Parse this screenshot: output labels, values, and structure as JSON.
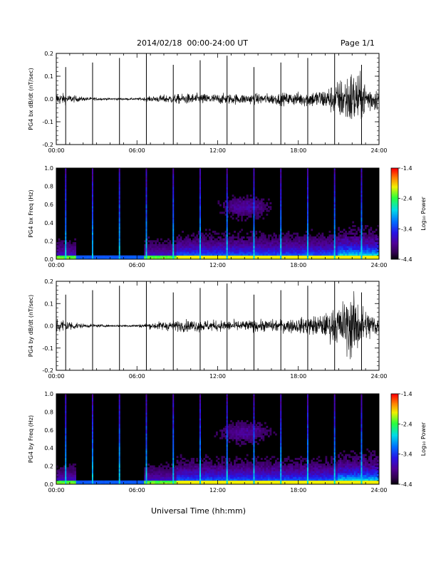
{
  "header": {
    "title": "2014/02/18  00:00-24:00 UT",
    "page": "Page 1/1"
  },
  "xaxis_label": "Universal Time (hh:mm)",
  "x_ticks": [
    "00:00",
    "06:00",
    "12:00",
    "18:00",
    "24:00"
  ],
  "colors": {
    "background": "#ffffff",
    "spectrogram_background": "#000000",
    "trace": "#000000"
  },
  "chart_data": [
    {
      "type": "line",
      "ylabel": "PG4 bx dB/dt (nT/sec)",
      "xlim": [
        0,
        24
      ],
      "ylim": [
        -0.2,
        0.2
      ],
      "y_ticks": [
        "0.2",
        "0.1",
        "0.0",
        "-0.1",
        "-0.2"
      ],
      "x_ticks": [
        "00:00",
        "06:00",
        "12:00",
        "18:00",
        "24:00"
      ],
      "spike_times_hours": [
        0.7,
        2.7,
        4.7,
        6.7,
        8.7,
        10.7,
        12.7,
        14.7,
        16.7,
        18.7,
        20.7,
        22.7
      ],
      "noise_envelope": {
        "t_hours": [
          0,
          1,
          2,
          4,
          6,
          8,
          10,
          12,
          14,
          16,
          18,
          20,
          21,
          22,
          23,
          24
        ],
        "amplitude": [
          0.02,
          0.012,
          0.006,
          0.003,
          0.003,
          0.012,
          0.016,
          0.015,
          0.015,
          0.016,
          0.02,
          0.03,
          0.055,
          0.09,
          0.05,
          0.03
        ]
      }
    },
    {
      "type": "heatmap",
      "ylabel": "PG4 bx Freq (Hz)",
      "xlim": [
        0,
        24
      ],
      "ylim": [
        0,
        1.0
      ],
      "y_ticks": [
        "1.0",
        "0.8",
        "0.6",
        "0.4",
        "0.2",
        "0.0"
      ],
      "x_ticks": [
        "00:00",
        "06:00",
        "12:00",
        "18:00",
        "24:00"
      ],
      "colorbar": {
        "label": "Log₁₀ Power",
        "range": [
          -4.4,
          -1.4
        ],
        "ticks": [
          "-1.4",
          "-2.4",
          "-3.4",
          "-4.4"
        ]
      },
      "vertical_lines_hours": [
        0.7,
        2.7,
        4.7,
        6.7,
        8.7,
        10.7,
        12.7,
        14.7,
        16.7,
        18.7,
        20.7,
        22.7
      ]
    },
    {
      "type": "line",
      "ylabel": "PG4 by dB/dt (nT/sec)",
      "xlim": [
        0,
        24
      ],
      "ylim": [
        -0.2,
        0.2
      ],
      "y_ticks": [
        "0.2",
        "0.1",
        "0.0",
        "-0.1",
        "-0.2"
      ],
      "x_ticks": [
        "00:00",
        "06:00",
        "12:00",
        "18:00",
        "24:00"
      ],
      "spike_times_hours": [
        0.7,
        2.7,
        4.7,
        6.7,
        8.7,
        10.7,
        12.7,
        14.7,
        16.7,
        18.7,
        20.7,
        22.7
      ],
      "noise_envelope": {
        "t_hours": [
          0,
          1,
          2,
          4,
          6,
          8,
          10,
          12,
          14,
          16,
          18,
          20,
          21,
          22,
          23,
          24
        ],
        "amplitude": [
          0.025,
          0.015,
          0.006,
          0.003,
          0.004,
          0.014,
          0.018,
          0.016,
          0.016,
          0.018,
          0.022,
          0.035,
          0.06,
          0.1,
          0.05,
          0.03
        ]
      }
    },
    {
      "type": "heatmap",
      "ylabel": "PG4 by Freq (Hz)",
      "xlim": [
        0,
        24
      ],
      "ylim": [
        0,
        1.0
      ],
      "y_ticks": [
        "1.0",
        "0.8",
        "0.6",
        "0.4",
        "0.2",
        "0.0"
      ],
      "x_ticks": [
        "00:00",
        "06:00",
        "12:00",
        "18:00",
        "24:00"
      ],
      "colorbar": {
        "label": "Log₁₀ Power",
        "range": [
          -4.4,
          -1.4
        ],
        "ticks": [
          "-1.4",
          "-2.4",
          "-3.4",
          "-4.4"
        ]
      },
      "vertical_lines_hours": [
        0.7,
        2.7,
        4.7,
        6.7,
        8.7,
        10.7,
        12.7,
        14.7,
        16.7,
        18.7,
        20.7,
        22.7
      ]
    }
  ]
}
